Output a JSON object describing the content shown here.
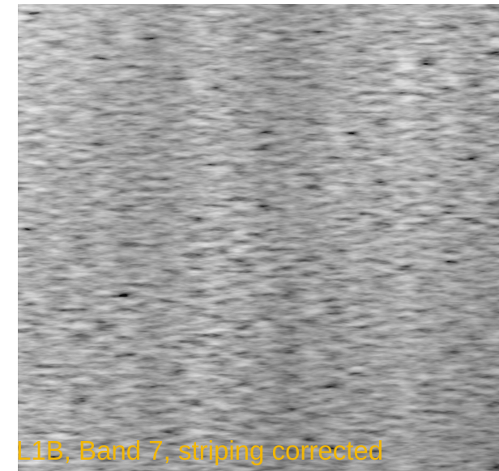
{
  "caption": "L1B, Band 7, striping corrected"
}
